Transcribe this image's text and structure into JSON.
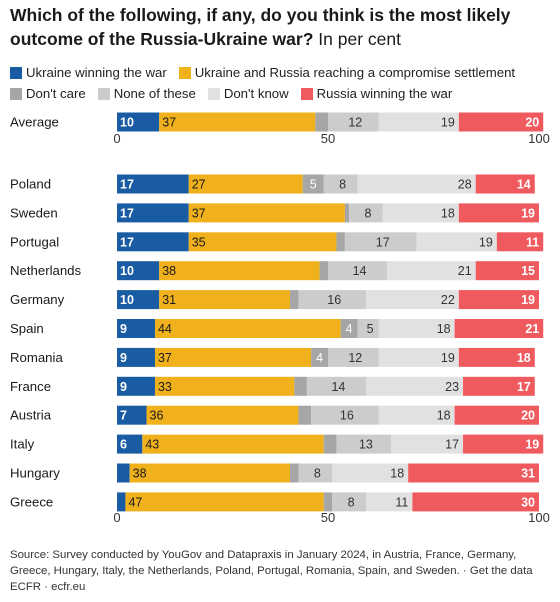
{
  "title": {
    "bold": "Which of the following, if any, do you think is the most likely outcome of the Russia-Ukraine war?",
    "light": "In per cent"
  },
  "legend": [
    {
      "label": "Ukraine winning the war",
      "color": "#1a5ca3"
    },
    {
      "label": "Ukraine and Russia reaching a compromise settlement",
      "color": "#f0b11c"
    },
    {
      "label": "Don't care",
      "color": "#a6a6a6"
    },
    {
      "label": "None of these",
      "color": "#cccccc"
    },
    {
      "label": "Don't know",
      "color": "#e1e1e1"
    },
    {
      "label": "Russia winning the war",
      "color": "#ef5a5f"
    }
  ],
  "chart_data": {
    "type": "bar",
    "orientation": "horizontal",
    "stacked": true,
    "xlim": [
      0,
      100
    ],
    "x_ticks": [
      0,
      50,
      100
    ],
    "categories": [
      "Average",
      "Poland",
      "Sweden",
      "Portugal",
      "Netherlands",
      "Germany",
      "Spain",
      "Romania",
      "France",
      "Austria",
      "Italy",
      "Hungary",
      "Greece"
    ],
    "series": [
      {
        "name": "Ukraine winning the war",
        "color": "#1a5ca3",
        "label_color": "#ffffff",
        "values": [
          10,
          17,
          17,
          17,
          10,
          10,
          9,
          9,
          9,
          7,
          6,
          3,
          2
        ]
      },
      {
        "name": "Ukraine and Russia reaching a compromise settlement",
        "color": "#f0b11c",
        "label_color": "#1a1a1a",
        "values": [
          37,
          27,
          37,
          35,
          38,
          31,
          44,
          37,
          33,
          36,
          43,
          38,
          47
        ]
      },
      {
        "name": "Don't care",
        "color": "#a6a6a6",
        "label_color": "#ffffff",
        "values": [
          3,
          5,
          1,
          2,
          2,
          2,
          4,
          4,
          3,
          3,
          3,
          2,
          2
        ]
      },
      {
        "name": "None of these",
        "color": "#cccccc",
        "label_color": "#333333",
        "values": [
          12,
          8,
          8,
          17,
          14,
          16,
          5,
          12,
          14,
          16,
          13,
          8,
          8
        ]
      },
      {
        "name": "Don't know",
        "color": "#e1e1e1",
        "label_color": "#333333",
        "values": [
          19,
          28,
          18,
          19,
          21,
          22,
          18,
          19,
          23,
          18,
          17,
          18,
          11
        ]
      },
      {
        "name": "Russia winning the war",
        "color": "#ef5a5f",
        "label_color": "#ffffff",
        "values": [
          20,
          14,
          19,
          11,
          15,
          19,
          21,
          18,
          17,
          20,
          19,
          31,
          30
        ]
      }
    ],
    "shown_labels": [
      [
        true,
        true,
        false,
        true,
        true,
        true
      ],
      [
        true,
        true,
        true,
        true,
        true,
        true
      ],
      [
        true,
        true,
        false,
        true,
        true,
        true
      ],
      [
        true,
        true,
        false,
        true,
        true,
        true
      ],
      [
        true,
        true,
        false,
        true,
        true,
        true
      ],
      [
        true,
        true,
        false,
        true,
        true,
        true
      ],
      [
        true,
        true,
        true,
        true,
        true,
        true
      ],
      [
        true,
        true,
        true,
        true,
        true,
        true
      ],
      [
        true,
        true,
        false,
        true,
        true,
        true
      ],
      [
        true,
        true,
        false,
        true,
        true,
        true
      ],
      [
        true,
        true,
        false,
        true,
        true,
        true
      ],
      [
        false,
        true,
        false,
        true,
        true,
        true
      ],
      [
        false,
        true,
        false,
        true,
        true,
        true
      ]
    ]
  },
  "source": "Source: Survey conducted by YouGov and Datapraxis in January 2024, in Austria, France, Germany, Greece, Hungary, Italy, the Netherlands, Poland, Portugal, Romania, Spain, and Sweden. · Get the data",
  "footer": "ECFR · ecfr.eu"
}
